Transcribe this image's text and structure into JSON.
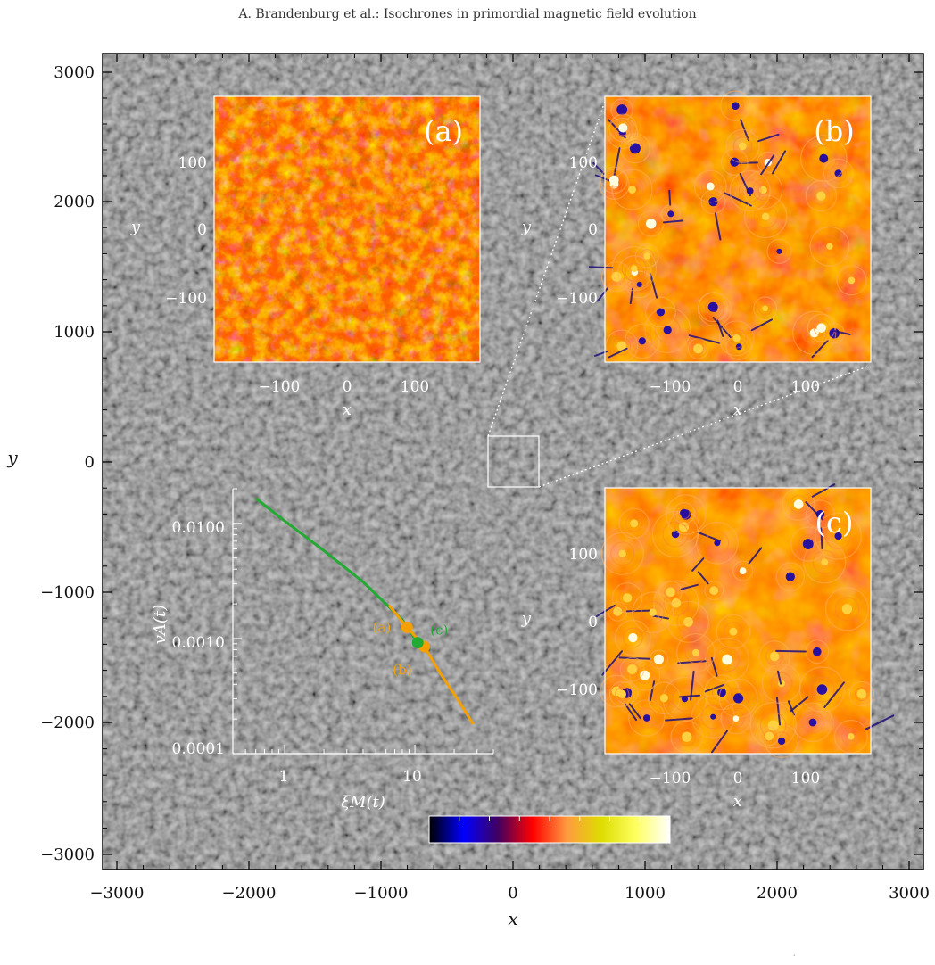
{
  "header": {
    "running_title": "A. Brandenburg et al.: Isochrones in primordial magnetic field evolution"
  },
  "main_axes": {
    "x_title": "x",
    "y_title": "y",
    "x_ticks": [
      "−3000",
      "−2000",
      "−1000",
      "0",
      "1000",
      "2000",
      "3000"
    ],
    "y_ticks": [
      "3000",
      "2000",
      "1000",
      "0",
      "−1000",
      "−2000",
      "−3000"
    ]
  },
  "panels": [
    {
      "id": "a",
      "label": "(a)",
      "x_title": "x",
      "y_title": "y",
      "x_ticks": [
        "−100",
        "0",
        "100"
      ],
      "y_ticks": [
        "100",
        "0",
        "−100"
      ],
      "palette": "fine"
    },
    {
      "id": "b",
      "label": "(b)",
      "x_title": "x",
      "y_title": "y",
      "x_ticks": [
        "−100",
        "0",
        "100"
      ],
      "y_ticks": [
        "100",
        "0",
        "−100"
      ],
      "palette": "swirl"
    },
    {
      "id": "c",
      "label": "(c)",
      "x_title": "x",
      "y_title": "y",
      "x_ticks": [
        "−100",
        "0",
        "100"
      ],
      "y_ticks": [
        "100",
        "0",
        "−100"
      ],
      "palette": "swirl2"
    }
  ],
  "colorbar": {
    "colors": [
      "#000000",
      "#0000ff",
      "#400060",
      "#ff0000",
      "#ff9a40",
      "#dddd00",
      "#ffff60",
      "#ffffff"
    ]
  },
  "chart_data": {
    "type": "line",
    "xscale": "log",
    "yscale": "log",
    "xlabel": "ξM(t)",
    "ylabel": "vA(t)",
    "x_ticks": [
      "1",
      "10"
    ],
    "y_ticks": [
      "0.0100",
      "0.0010",
      "0.0001"
    ],
    "xlim": [
      0.4,
      40
    ],
    "ylim": [
      0.0001,
      0.02
    ],
    "series": [
      {
        "color": "#22aa33",
        "x": [
          0.6,
          1.0,
          2.0,
          4.0,
          8.0,
          10.5
        ],
        "y": [
          0.0165,
          0.0105,
          0.0058,
          0.0031,
          0.00145,
          0.00092
        ]
      },
      {
        "color": "#f5a000",
        "x": [
          6.3,
          8.7,
          11.8,
          16.0,
          22.0,
          28.0
        ],
        "y": [
          0.00195,
          0.00125,
          0.00085,
          0.00048,
          0.00028,
          0.00018
        ]
      }
    ],
    "points": [
      {
        "label": "(a)",
        "color": "#f5a000",
        "x": 8.7,
        "y": 0.00125
      },
      {
        "label": "(b)",
        "color": "#f5a000",
        "x": 11.8,
        "y": 0.00085
      },
      {
        "label": "(c)",
        "color": "#22aa33",
        "x": 10.5,
        "y": 0.00092
      }
    ]
  }
}
